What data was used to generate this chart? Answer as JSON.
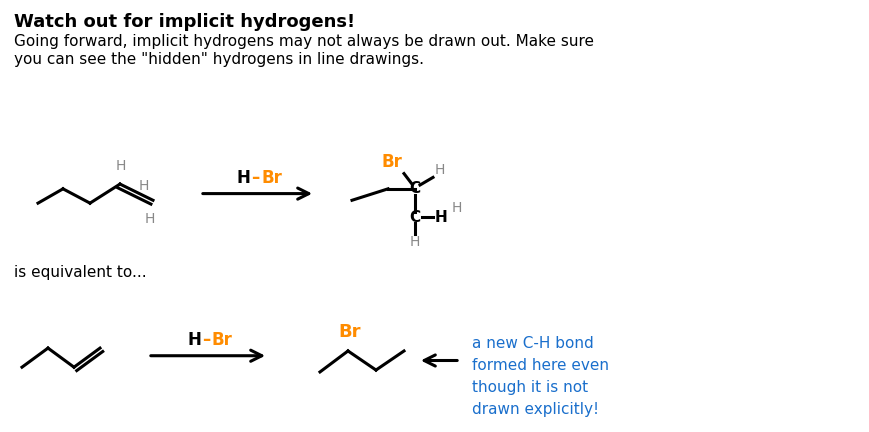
{
  "title": "Watch out for implicit hydrogens!",
  "subtitle_line1": "Going forward, implicit hydrogens may not always be drawn out. Make sure",
  "subtitle_line2": "you can see the \"hidden\" hydrogens in line drawings.",
  "equiv_text": "is equivalent to...",
  "br_color": "#FF8C00",
  "h_color": "#888888",
  "black": "#000000",
  "blue": "#1a6fcc",
  "background": "#ffffff",
  "annotation": "a new C-H bond\nformed here even\nthough it is not\ndrawn explicitly!"
}
